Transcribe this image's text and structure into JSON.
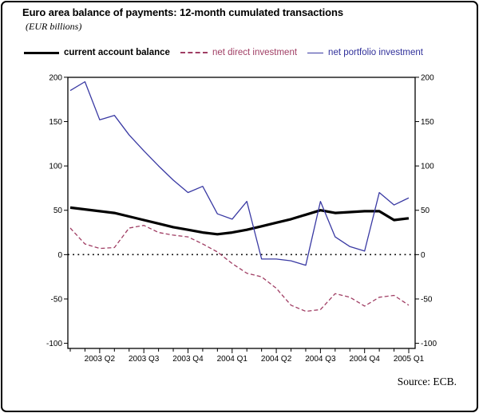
{
  "figure": {
    "title": "Euro area balance of payments: 12-month cumulated transactions",
    "subtitle": "(EUR billions)",
    "source": "Source: ECB."
  },
  "legend": [
    {
      "label": "current account balance",
      "style": "solid-thick",
      "color": "#000000"
    },
    {
      "label": "net direct investment",
      "style": "dashed",
      "color": "#A03E64"
    },
    {
      "label": "net portfolio investment",
      "style": "solid-thin",
      "color": "#3939A3"
    }
  ],
  "chart_data": {
    "type": "line",
    "title": "Euro area balance of payments: 12-month cumulated transactions",
    "units": "EUR billions",
    "frequency": "monthly",
    "x_tick_labels": [
      "2003 Q2",
      "2003 Q3",
      "2003 Q4",
      "2004 Q1",
      "2004 Q2",
      "2004 Q3",
      "2004 Q4",
      "2005 Q1"
    ],
    "x_tick_indices": [
      2,
      5,
      8,
      11,
      14,
      17,
      20,
      23
    ],
    "y_ticks": [
      200,
      150,
      100,
      50,
      0,
      -50,
      -100
    ],
    "ylim": [
      -100,
      200
    ],
    "zero_line": true,
    "legend_position": "top",
    "grid": false,
    "series": [
      {
        "name": "current account balance",
        "color": "#000000",
        "width": 3.2,
        "dash": "",
        "values": [
          53,
          51,
          49,
          47,
          43,
          39,
          35,
          31,
          28,
          25,
          23,
          25,
          28,
          32,
          36,
          40,
          45,
          50,
          47,
          48,
          49,
          49,
          39,
          41
        ]
      },
      {
        "name": "net direct investment",
        "color": "#A03E64",
        "width": 1.3,
        "dash": "5 3",
        "values": [
          30,
          12,
          7,
          8,
          30,
          33,
          25,
          22,
          20,
          12,
          3,
          -10,
          -21,
          -25,
          -38,
          -57,
          -64,
          -62,
          -44,
          -48,
          -58,
          -48,
          -46,
          -57
        ]
      },
      {
        "name": "net portfolio investment",
        "color": "#3939A3",
        "width": 1.3,
        "dash": "",
        "values": [
          185,
          195,
          152,
          157,
          135,
          117,
          100,
          84,
          70,
          77,
          46,
          40,
          60,
          -5,
          -5,
          -7,
          -12,
          60,
          20,
          9,
          4,
          70,
          56,
          64
        ]
      }
    ]
  }
}
